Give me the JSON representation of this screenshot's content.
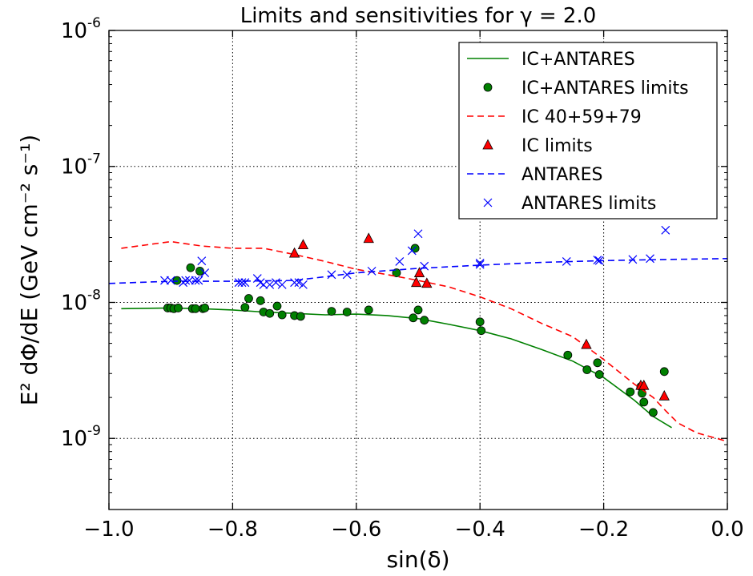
{
  "chart_data": {
    "type": "scatter",
    "title": "Limits and sensitivities for γ = 2.0",
    "xlabel": "sin(δ)",
    "ylabel": "E² dΦ/dE (GeV cm⁻² s⁻¹)",
    "x_ticks": [
      "−1.0",
      "−0.8",
      "−0.6",
      "−0.4",
      "−0.2",
      "0.0"
    ],
    "y_ticks": [
      {
        "base": "10",
        "exp": "-9"
      },
      {
        "base": "10",
        "exp": "-8"
      },
      {
        "base": "10",
        "exp": "-7"
      },
      {
        "base": "10",
        "exp": "-6"
      }
    ],
    "xlim": [
      -1.0,
      0.0
    ],
    "ylim": [
      3e-10,
      1e-06
    ],
    "yscale": "log",
    "grid": true,
    "legend_position": "top-right",
    "colors": {
      "green": "#008000",
      "red": "#ff0000",
      "blue": "#0000ff"
    },
    "series": [
      {
        "name": "IC+ANTARES",
        "kind": "line",
        "color": "#008000",
        "dash": "solid",
        "x": [
          -0.98,
          -0.9,
          -0.85,
          -0.8,
          -0.75,
          -0.7,
          -0.65,
          -0.6,
          -0.55,
          -0.5,
          -0.45,
          -0.4,
          -0.35,
          -0.3,
          -0.25,
          -0.2,
          -0.15,
          -0.12,
          -0.09
        ],
        "y": [
          9e-09,
          9.1e-09,
          9e-09,
          8.8e-09,
          8.5e-09,
          8.3e-09,
          8.1e-09,
          8.2e-09,
          8e-09,
          7.6e-09,
          6.9e-09,
          6.2e-09,
          5.4e-09,
          4.5e-09,
          3.7e-09,
          2.8e-09,
          1.9e-09,
          1.45e-09,
          1.2e-09
        ]
      },
      {
        "name": "IC+ANTARES limits",
        "kind": "markers",
        "marker": "circle",
        "color": "#008000",
        "x": [
          -0.905,
          -0.9,
          -0.895,
          -0.89,
          -0.888,
          -0.868,
          -0.865,
          -0.86,
          -0.853,
          -0.848,
          -0.845,
          -0.78,
          -0.774,
          -0.755,
          -0.75,
          -0.74,
          -0.728,
          -0.72,
          -0.7,
          -0.69,
          -0.64,
          -0.615,
          -0.58,
          -0.535,
          -0.508,
          -0.505,
          -0.5,
          -0.49,
          -0.4,
          -0.398,
          -0.258,
          -0.227,
          -0.21,
          -0.207,
          -0.157,
          -0.14,
          -0.138,
          -0.135,
          -0.12,
          -0.102
        ],
        "y": [
          9.1e-09,
          9.1e-09,
          9e-09,
          1.45e-08,
          9.1e-09,
          1.8e-08,
          9e-09,
          9e-09,
          1.7e-08,
          9e-09,
          9.1e-09,
          9.2e-09,
          1.07e-08,
          1.03e-08,
          8.5e-09,
          8.3e-09,
          9.4e-09,
          8.1e-09,
          8e-09,
          7.9e-09,
          8.6e-09,
          8.5e-09,
          8.8e-09,
          1.65e-08,
          7.7e-09,
          2.5e-08,
          8.8e-09,
          7.4e-09,
          7.2e-09,
          6.2e-09,
          4.1e-09,
          3.2e-09,
          3.6e-09,
          2.95e-09,
          2.2e-09,
          2.4e-09,
          2.15e-09,
          1.85e-09,
          1.55e-09,
          3.1e-09
        ]
      },
      {
        "name": "IC 40+59+79",
        "kind": "line",
        "color": "#ff0000",
        "dash": "dashed",
        "x": [
          -0.98,
          -0.9,
          -0.85,
          -0.8,
          -0.75,
          -0.7,
          -0.65,
          -0.6,
          -0.55,
          -0.5,
          -0.45,
          -0.4,
          -0.35,
          -0.3,
          -0.25,
          -0.2,
          -0.15,
          -0.12,
          -0.1,
          -0.08,
          -0.05,
          0.0
        ],
        "y": [
          2.5e-08,
          2.8e-08,
          2.6e-08,
          2.5e-08,
          2.5e-08,
          2.25e-08,
          2e-08,
          1.75e-08,
          1.6e-08,
          1.45e-08,
          1.3e-08,
          1.1e-08,
          9e-09,
          7e-09,
          5.6e-09,
          3.8e-09,
          2.5e-09,
          2e-09,
          1.6e-09,
          1.3e-09,
          1.1e-09,
          9.5e-10
        ]
      },
      {
        "name": "IC limits",
        "kind": "markers",
        "marker": "triangle",
        "color": "#ff0000",
        "x": [
          -0.7,
          -0.686,
          -0.58,
          -0.503,
          -0.498,
          -0.486,
          -0.228,
          -0.14,
          -0.135,
          -0.102
        ],
        "y": [
          2.3e-08,
          2.65e-08,
          2.95e-08,
          1.4e-08,
          1.65e-08,
          1.38e-08,
          4.9e-09,
          2.45e-09,
          2.45e-09,
          2.05e-09
        ]
      },
      {
        "name": "ANTARES",
        "kind": "line",
        "color": "#0000ff",
        "dash": "dashed",
        "x": [
          -1.0,
          -0.9,
          -0.8,
          -0.7,
          -0.6,
          -0.5,
          -0.4,
          -0.3,
          -0.2,
          -0.1,
          0.0
        ],
        "y": [
          1.38e-08,
          1.43e-08,
          1.43e-08,
          1.45e-08,
          1.65e-08,
          1.78e-08,
          1.88e-08,
          1.97e-08,
          2.03e-08,
          2.07e-08,
          2.1e-08
        ]
      },
      {
        "name": "ANTARES limits",
        "kind": "markers",
        "marker": "x",
        "color": "#0000ff",
        "x": [
          -0.91,
          -0.9,
          -0.88,
          -0.876,
          -0.87,
          -0.86,
          -0.855,
          -0.85,
          -0.845,
          -0.79,
          -0.785,
          -0.78,
          -0.76,
          -0.755,
          -0.75,
          -0.74,
          -0.73,
          -0.72,
          -0.7,
          -0.693,
          -0.686,
          -0.64,
          -0.615,
          -0.575,
          -0.53,
          -0.51,
          -0.5,
          -0.49,
          -0.4,
          -0.4,
          -0.26,
          -0.21,
          -0.207,
          -0.153,
          -0.125,
          -0.1
        ],
        "y": [
          1.45e-08,
          1.45e-08,
          1.4e-08,
          1.45e-08,
          1.45e-08,
          1.45e-08,
          1.45e-08,
          2.02e-08,
          1.65e-08,
          1.4e-08,
          1.4e-08,
          1.4e-08,
          1.5e-08,
          1.4e-08,
          1.35e-08,
          1.35e-08,
          1.4e-08,
          1.35e-08,
          1.4e-08,
          1.4e-08,
          1.35e-08,
          1.6e-08,
          1.6e-08,
          1.7e-08,
          2e-08,
          2.4e-08,
          3.2e-08,
          1.85e-08,
          1.9e-08,
          1.95e-08,
          2e-08,
          2.05e-08,
          2.03e-08,
          2.07e-08,
          2.1e-08,
          3.4e-08
        ]
      }
    ]
  }
}
